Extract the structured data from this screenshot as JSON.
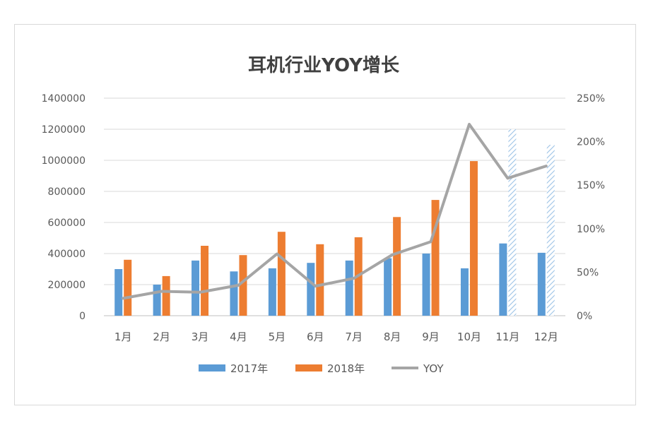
{
  "chart_data": {
    "type": "bar",
    "title": "耳机行业YOY增长",
    "categories": [
      "1月",
      "2月",
      "3月",
      "4月",
      "5月",
      "6月",
      "7月",
      "8月",
      "9月",
      "10月",
      "11月",
      "12月"
    ],
    "series": [
      {
        "name": "2017年",
        "type": "bar",
        "axis": "left",
        "color": "#5b9bd5",
        "values": [
          300000,
          200000,
          355000,
          285000,
          305000,
          340000,
          355000,
          370000,
          400000,
          305000,
          465000,
          405000
        ]
      },
      {
        "name": "2018年",
        "type": "bar",
        "axis": "left",
        "color": "#ed7d31",
        "values": [
          360000,
          255000,
          450000,
          390000,
          540000,
          460000,
          505000,
          635000,
          745000,
          995000,
          1200000,
          1100000
        ],
        "forecast_from_index": 10
      },
      {
        "name": "YOY",
        "type": "line",
        "axis": "right",
        "color": "#a5a5a5",
        "values": [
          0.2,
          0.28,
          0.27,
          0.35,
          0.71,
          0.34,
          0.43,
          0.7,
          0.85,
          2.2,
          1.58,
          1.72
        ]
      }
    ],
    "y_left": {
      "ylim": [
        0,
        1400000
      ],
      "ticks": [
        "0",
        "200000",
        "400000",
        "600000",
        "800000",
        "1000000",
        "1200000",
        "1400000"
      ]
    },
    "y_right": {
      "ylim": [
        0,
        2.5
      ],
      "ticks": [
        "0%",
        "50%",
        "100%",
        "150%",
        "200%",
        "250%"
      ]
    },
    "grid": true,
    "legend_position": "bottom",
    "xlabel": "",
    "ylabel": ""
  }
}
